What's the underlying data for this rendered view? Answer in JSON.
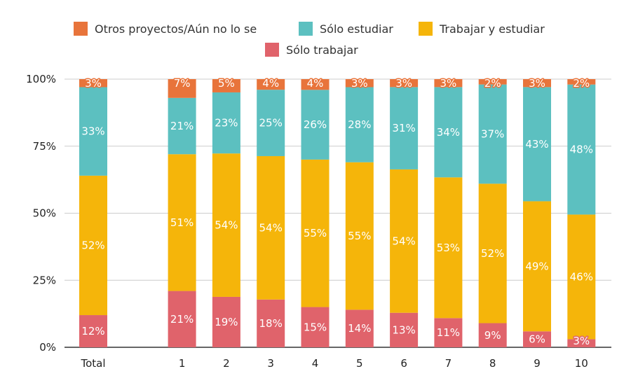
{
  "chart_data": {
    "type": "bar",
    "stacked": true,
    "percent": true,
    "categories": [
      "Total",
      "1",
      "2",
      "3",
      "4",
      "5",
      "6",
      "7",
      "8",
      "9",
      "10"
    ],
    "series": [
      {
        "name": "Sólo trabajar",
        "color": "#E0636B",
        "values": [
          12,
          21,
          19,
          18,
          15,
          14,
          13,
          11,
          9,
          6,
          3
        ]
      },
      {
        "name": "Trabajar y estudiar",
        "color": "#F5B50A",
        "values": [
          52,
          51,
          54,
          54,
          55,
          55,
          54,
          53,
          52,
          49,
          46
        ]
      },
      {
        "name": "Sólo estudiar",
        "color": "#5CC0C0",
        "values": [
          33,
          21,
          23,
          25,
          26,
          28,
          31,
          34,
          37,
          43,
          48
        ]
      },
      {
        "name": "Otros proyectos/Aún no lo se",
        "color": "#E8743B",
        "values": [
          3,
          7,
          5,
          4,
          4,
          3,
          3,
          3,
          2,
          3,
          2
        ]
      }
    ],
    "legend_order": [
      "Otros proyectos/Aún no lo se",
      "Sólo estudiar",
      "Trabajar y estudiar",
      "Sólo trabajar"
    ],
    "legend_position": "top",
    "yticks": [
      "0%",
      "25%",
      "50%",
      "75%",
      "100%"
    ],
    "ylim": [
      0,
      100
    ],
    "grid": true,
    "title": "",
    "xlabel": "",
    "ylabel": ""
  }
}
